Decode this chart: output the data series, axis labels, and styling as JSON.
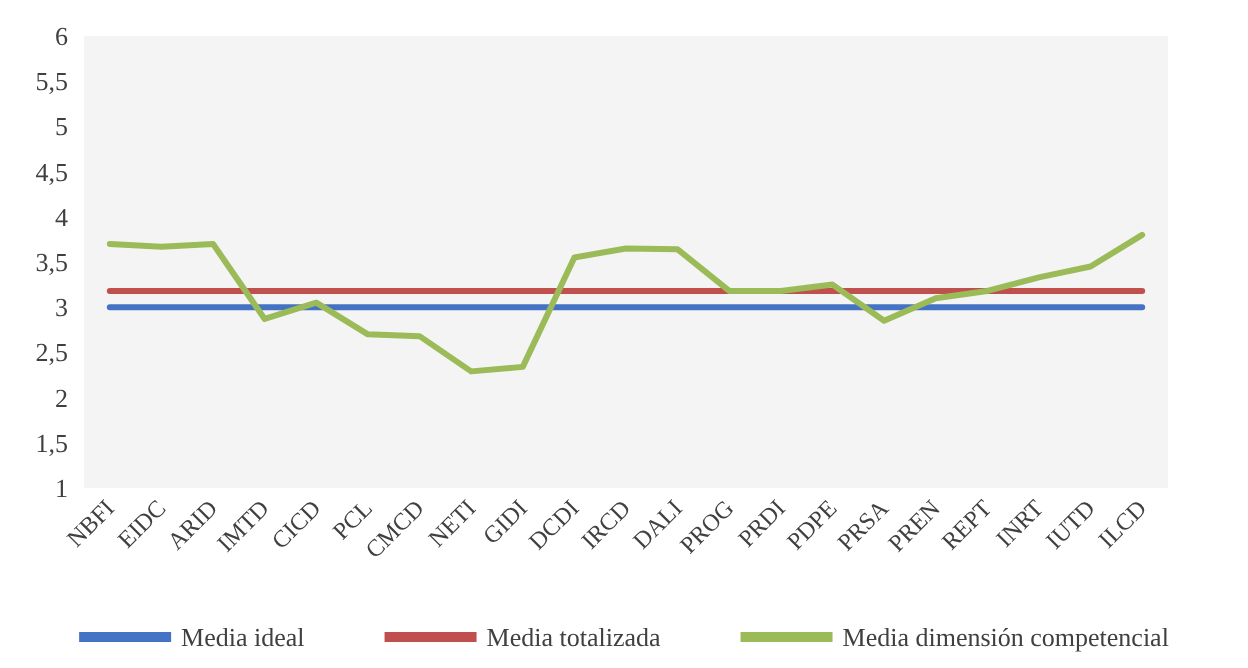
{
  "chart_data": {
    "type": "line",
    "categories": [
      "NBFI",
      "EIDC",
      "ARID",
      "IMTD",
      "CICD",
      "PCL",
      "CMCD",
      "NETI",
      "GIDI",
      "DCDI",
      "IRCD",
      "DALI",
      "PROG",
      "PRDI",
      "PDPE",
      "PRSA",
      "PREN",
      "REPT",
      "INRT",
      "IUTD",
      "ILCD"
    ],
    "series": [
      {
        "name": "Media ideal",
        "color": "#4472c4",
        "values": [
          3,
          3,
          3,
          3,
          3,
          3,
          3,
          3,
          3,
          3,
          3,
          3,
          3,
          3,
          3,
          3,
          3,
          3,
          3,
          3,
          3
        ]
      },
      {
        "name": "Media totalizada",
        "color": "#c0504d",
        "values": [
          3.18,
          3.18,
          3.18,
          3.18,
          3.18,
          3.18,
          3.18,
          3.18,
          3.18,
          3.18,
          3.18,
          3.18,
          3.18,
          3.18,
          3.18,
          3.18,
          3.18,
          3.18,
          3.18,
          3.18,
          3.18
        ]
      },
      {
        "name": "Media dimensión competencial",
        "color": "#9bbb59",
        "values": [
          3.7,
          3.67,
          3.7,
          2.87,
          3.05,
          2.7,
          2.68,
          2.29,
          2.34,
          3.55,
          3.65,
          3.64,
          3.18,
          3.18,
          3.25,
          2.85,
          3.1,
          3.18,
          3.33,
          3.45,
          3.8
        ]
      }
    ],
    "ylim": [
      1,
      6
    ],
    "yticks": [
      1,
      {
        "value": 1.5,
        "label": "1,5"
      },
      2,
      {
        "value": 2.5,
        "label": "2,5"
      },
      3,
      {
        "value": 3.5,
        "label": "3,5"
      },
      4,
      {
        "value": 4.5,
        "label": "4,5"
      },
      5,
      {
        "value": 5.5,
        "label": "5,5"
      },
      6
    ],
    "grid": false,
    "legend": "bottom",
    "marker": "none",
    "line_style": "solid"
  }
}
